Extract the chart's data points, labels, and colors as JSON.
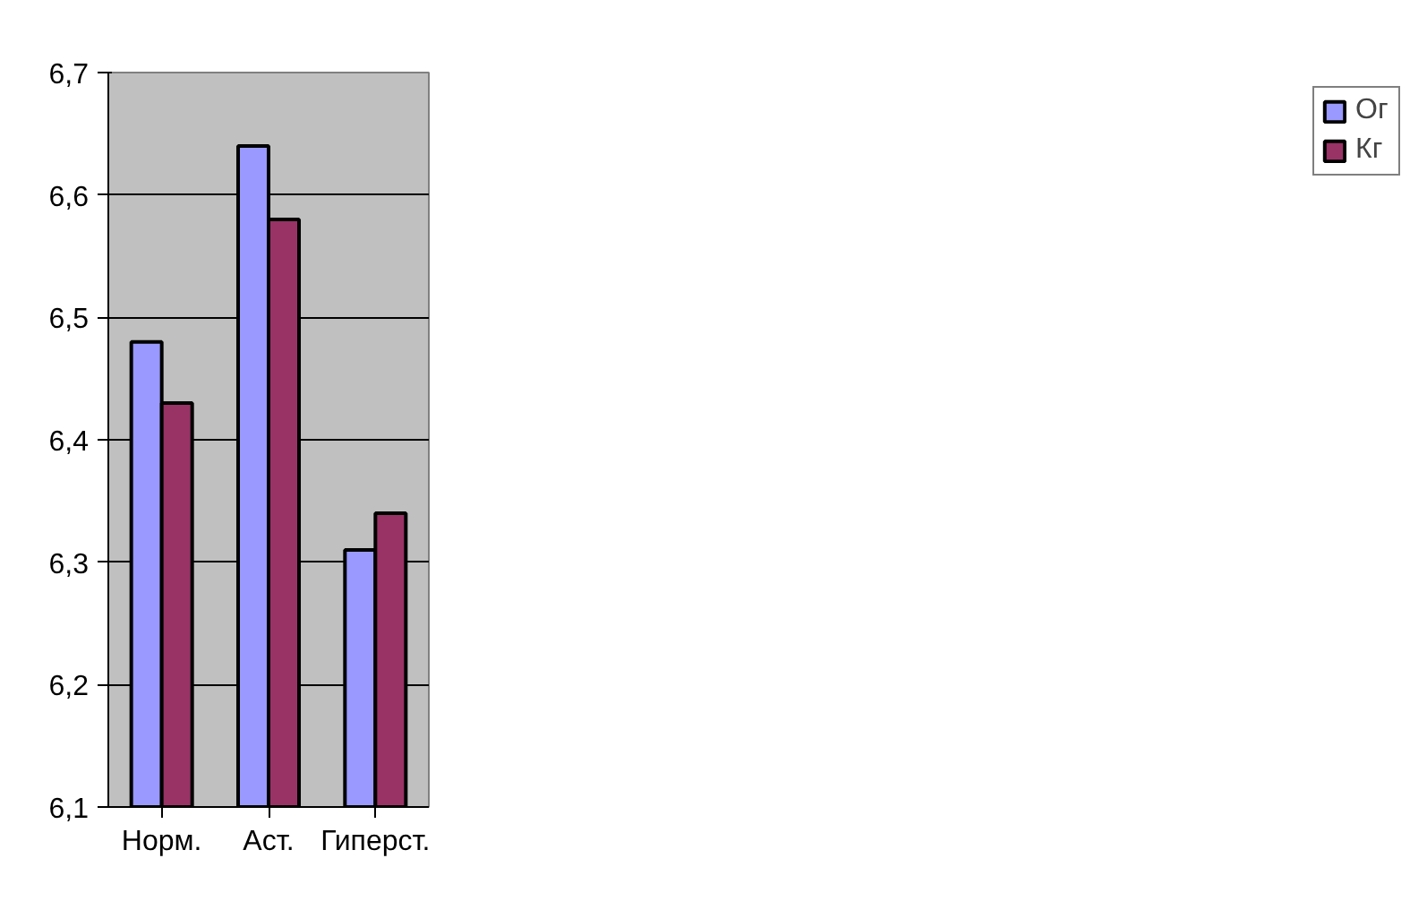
{
  "chart_data": {
    "type": "bar",
    "categories": [
      "Норм.",
      "Аст.",
      "Гиперст."
    ],
    "series": [
      {
        "name": "Ог",
        "color": "#9999ff",
        "values": [
          6.48,
          6.64,
          6.31
        ]
      },
      {
        "name": "Кг",
        "color": "#993366",
        "values": [
          6.43,
          6.58,
          6.34
        ]
      }
    ],
    "ylim": [
      6.1,
      6.7
    ],
    "yticks": [
      {
        "value": 6.1,
        "label": "6,1"
      },
      {
        "value": 6.2,
        "label": "6,2"
      },
      {
        "value": 6.3,
        "label": "6,3"
      },
      {
        "value": 6.4,
        "label": "6,4"
      },
      {
        "value": 6.5,
        "label": "6,5"
      },
      {
        "value": 6.6,
        "label": "6,6"
      },
      {
        "value": 6.7,
        "label": "6,7"
      }
    ],
    "grid": "y",
    "legend": "right"
  }
}
